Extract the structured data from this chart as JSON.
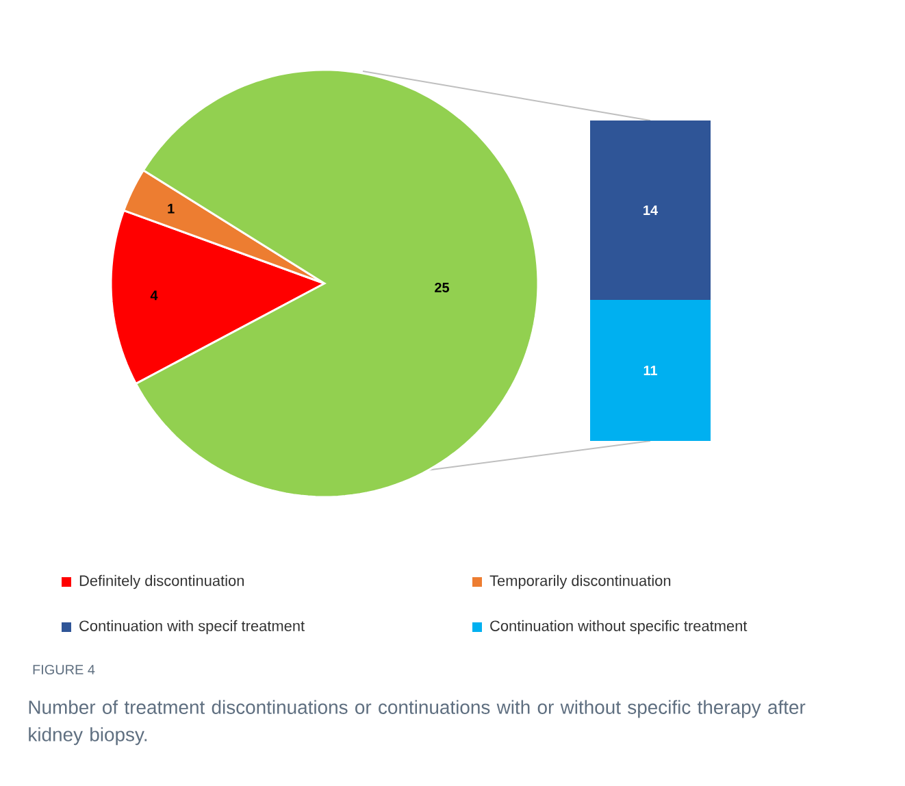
{
  "chart_data": [
    {
      "type": "pie",
      "title": "FIGURE 4",
      "annotations": [
        "Number of treatment discontinuations or continuations with or without specific therapy after kidney biopsy."
      ],
      "categories": [
        "Definitely discontinuation",
        "Temporarily discontinuation",
        null
      ],
      "values": [
        4,
        1,
        25
      ],
      "colors": [
        "#ff0000",
        "#ed7d31",
        "#92d050"
      ],
      "data_labels": true,
      "legend": "bottom"
    },
    {
      "type": "bar",
      "stacked": true,
      "categories": [
        null
      ],
      "series": [
        {
          "name": "Continuation without specific treatment",
          "color": "#00b0f0",
          "values": [
            11
          ]
        },
        {
          "name": "Continuation with specif treatment",
          "color": "#2f5597",
          "values": [
            14
          ]
        }
      ],
      "data_labels": true,
      "legend": "bottom"
    }
  ]
}
